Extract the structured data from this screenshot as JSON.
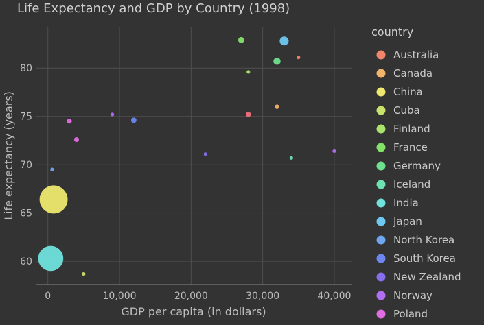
{
  "chart_data": {
    "type": "scatter",
    "title": "Life Expectancy and GDP by Country (1998)",
    "xlabel": "GDP per capita (in dollars)",
    "ylabel": "Life expectancy (years)",
    "x_ticks": [
      0,
      10000,
      20000,
      30000,
      40000
    ],
    "x_tick_labels": [
      "0",
      "10,000",
      "20,000",
      "30,000",
      "40,000"
    ],
    "y_ticks": [
      60,
      65,
      70,
      75,
      80
    ],
    "y_tick_labels": [
      "60",
      "65",
      "70",
      "75",
      "80"
    ],
    "xlim": [
      -1700,
      42500
    ],
    "ylim": [
      57.6,
      84.2
    ],
    "grid": true,
    "legend_title": "country",
    "legend_position": "right",
    "size_encoding": "population",
    "series": [
      {
        "name": "Australia",
        "color": "#f0856c",
        "points": [
          {
            "x": 35000,
            "y": 81.1,
            "pop": 19
          }
        ]
      },
      {
        "name": "Canada",
        "color": "#f2b36b",
        "points": [
          {
            "x": 32000,
            "y": 76.0,
            "pop": 31
          }
        ]
      },
      {
        "name": "China",
        "color": "#eee96e",
        "points": [
          {
            "x": 800,
            "y": 66.4,
            "pop": 1250
          }
        ]
      },
      {
        "name": "Cuba",
        "color": "#c8e26c",
        "points": [
          {
            "x": 5000,
            "y": 58.7,
            "pop": 11
          }
        ]
      },
      {
        "name": "Finland",
        "color": "#a9e26c",
        "points": [
          {
            "x": 28000,
            "y": 79.6,
            "pop": 5
          }
        ]
      },
      {
        "name": "France",
        "color": "#84e26a",
        "points": [
          {
            "x": 27000,
            "y": 82.9,
            "pop": 58
          }
        ]
      },
      {
        "name": "Germany",
        "color": "#6fe08e",
        "points": [
          {
            "x": 32000,
            "y": 80.7,
            "pop": 82
          }
        ]
      },
      {
        "name": "Iceland",
        "color": "#6fe0b2",
        "points": [
          {
            "x": 34000,
            "y": 70.7,
            "pop": 0.3
          }
        ]
      },
      {
        "name": "India",
        "color": "#6fe2dc",
        "points": [
          {
            "x": 400,
            "y": 60.3,
            "pop": 1000
          }
        ]
      },
      {
        "name": "Japan",
        "color": "#6ec8f0",
        "points": [
          {
            "x": 33000,
            "y": 82.8,
            "pop": 126
          }
        ]
      },
      {
        "name": "North Korea",
        "color": "#6ea6f0",
        "points": [
          {
            "x": 600,
            "y": 69.5,
            "pop": 22
          }
        ]
      },
      {
        "name": "South Korea",
        "color": "#6e86f0",
        "points": [
          {
            "x": 12000,
            "y": 74.6,
            "pop": 46
          }
        ]
      },
      {
        "name": "New Zealand",
        "color": "#896ef0",
        "points": [
          {
            "x": 22000,
            "y": 71.1,
            "pop": 3.8
          }
        ]
      },
      {
        "name": "Norway",
        "color": "#b16ef0",
        "points": [
          {
            "x": 40000,
            "y": 71.4,
            "pop": 4.4
          },
          {
            "x": 9000,
            "y": 75.2,
            "pop": 4.4
          }
        ]
      },
      {
        "name": "Poland",
        "color": "#e06ee0",
        "points": [
          {
            "x": 3000,
            "y": 74.5,
            "pop": 38
          },
          {
            "x": 4000,
            "y": 72.6,
            "pop": 38
          }
        ]
      },
      {
        "name": "",
        "color": "#f07080",
        "points": [
          {
            "x": 28000,
            "y": 75.2,
            "pop": 40
          }
        ]
      }
    ]
  }
}
